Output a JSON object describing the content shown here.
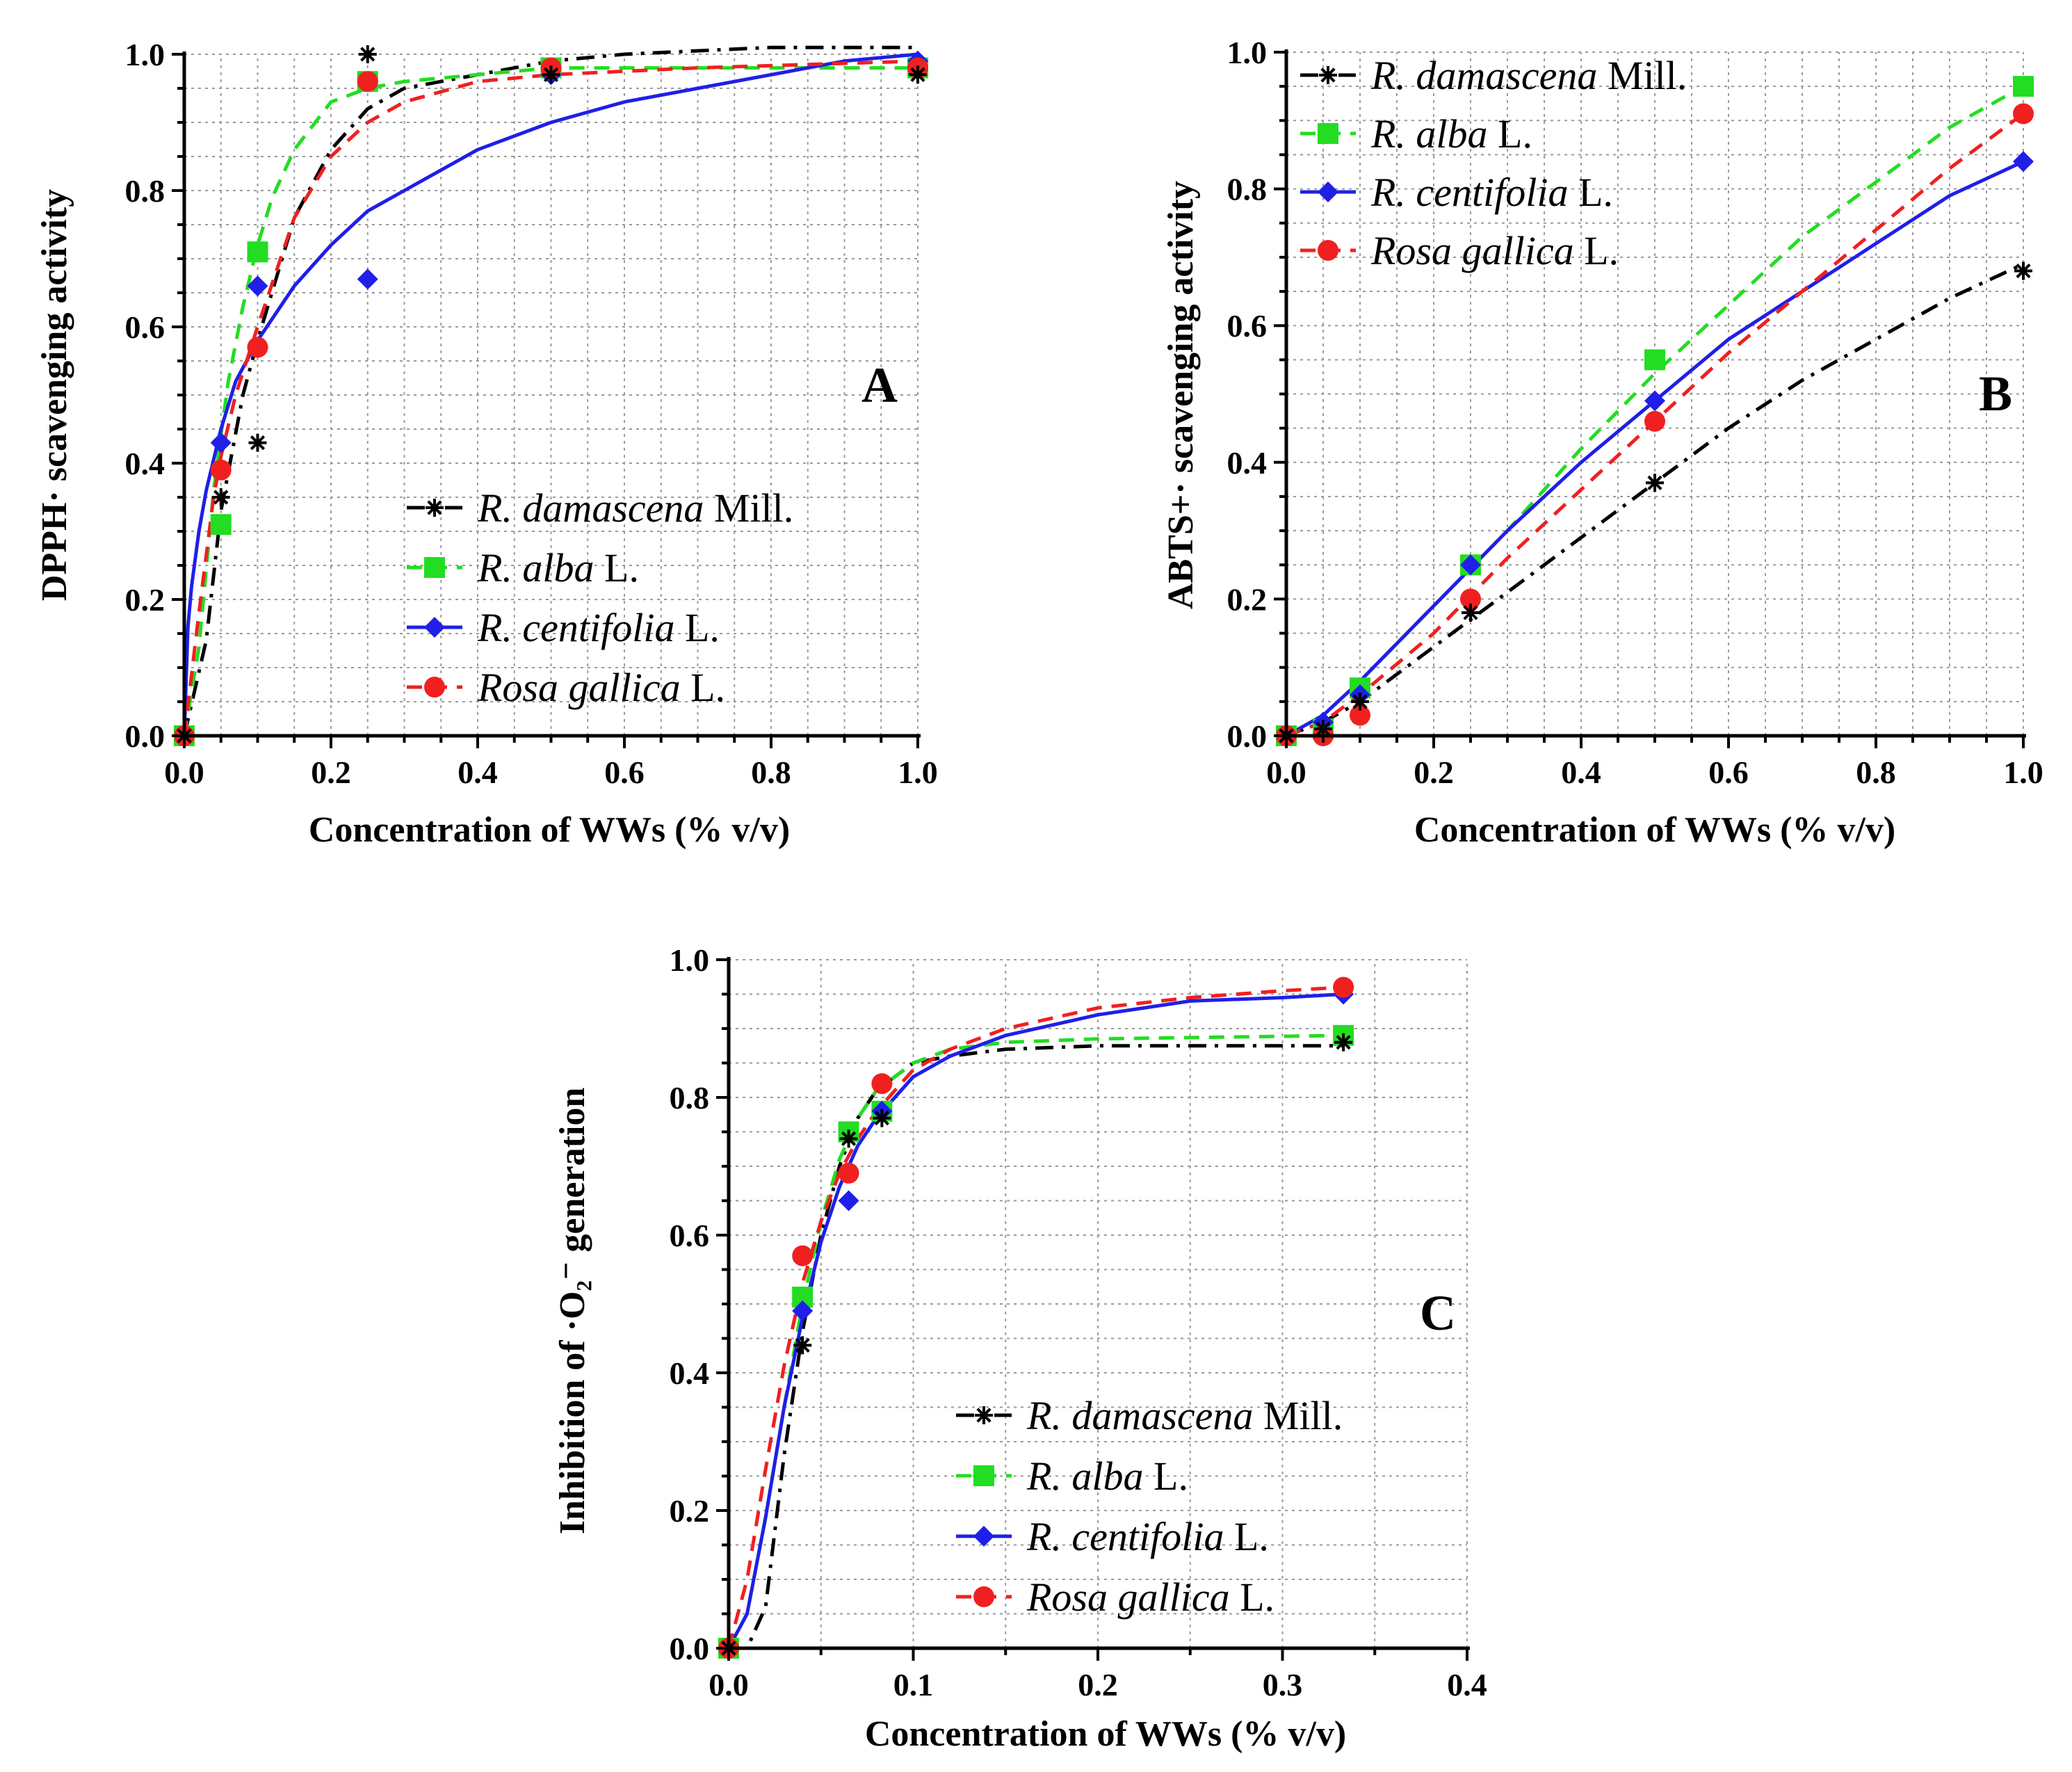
{
  "chart_data": [
    {
      "type": "scatter",
      "panel": "A",
      "xlabel": "Concentration of WWs (% v/v)",
      "ylabel": "DPPH· scavenging activity",
      "xlim": [
        0,
        1.0
      ],
      "ylim": [
        0,
        1.0
      ],
      "xticks": [
        "0.0",
        "0.2",
        "0.4",
        "0.6",
        "0.8",
        "1.0"
      ],
      "yticks": [
        "0.0",
        "0.2",
        "0.4",
        "0.6",
        "0.8",
        "1.0"
      ],
      "grid": true,
      "legend_position": "bottom-right",
      "series": [
        {
          "name": "R. damascena Mill.",
          "species": "R. damascena",
          "suffix": " Mill.",
          "color": "#000000",
          "marker": "star",
          "dash": "dashdot",
          "x": [
            0,
            0.05,
            0.1,
            0.25,
            0.5,
            1.0
          ],
          "y": [
            0,
            0.35,
            0.43,
            1.0,
            0.97,
            0.97
          ],
          "fit_x": [
            0,
            0.03,
            0.05,
            0.08,
            0.1,
            0.15,
            0.2,
            0.25,
            0.3,
            0.4,
            0.5,
            0.6,
            0.8,
            1.0
          ],
          "fit_y": [
            0,
            0.14,
            0.33,
            0.5,
            0.58,
            0.76,
            0.86,
            0.92,
            0.95,
            0.97,
            0.99,
            1.0,
            1.01,
            1.01
          ]
        },
        {
          "name": "R. alba L.",
          "species": "R. alba",
          "suffix": " L.",
          "color": "#22dd22",
          "marker": "square",
          "dash": "dash",
          "x": [
            0,
            0.05,
            0.1,
            0.25,
            0.5,
            1.0
          ],
          "y": [
            0,
            0.31,
            0.71,
            0.96,
            0.98,
            0.98
          ],
          "fit_x": [
            0,
            0.02,
            0.04,
            0.06,
            0.08,
            0.1,
            0.12,
            0.15,
            0.2,
            0.25,
            0.3,
            0.4,
            0.5,
            0.7,
            1.0
          ],
          "fit_y": [
            0,
            0.13,
            0.36,
            0.52,
            0.63,
            0.72,
            0.79,
            0.86,
            0.93,
            0.95,
            0.96,
            0.97,
            0.98,
            0.98,
            0.98
          ]
        },
        {
          "name": "R. centifolia L.",
          "species": "R. centifolia",
          "suffix": " L.",
          "color": "#1f1fe8",
          "marker": "diamond",
          "dash": "solid",
          "x": [
            0,
            0.05,
            0.1,
            0.25,
            0.5,
            1.0
          ],
          "y": [
            0,
            0.43,
            0.66,
            0.67,
            0.97,
            0.99
          ],
          "fit_x": [
            0,
            0.005,
            0.01,
            0.02,
            0.03,
            0.05,
            0.07,
            0.1,
            0.15,
            0.2,
            0.25,
            0.3,
            0.4,
            0.5,
            0.6,
            0.7,
            0.8,
            0.9,
            1.0
          ],
          "fit_y": [
            0,
            0.16,
            0.22,
            0.3,
            0.36,
            0.45,
            0.52,
            0.58,
            0.66,
            0.72,
            0.77,
            0.8,
            0.86,
            0.9,
            0.93,
            0.95,
            0.97,
            0.99,
            1.0
          ]
        },
        {
          "name": "Rosa gallica L.",
          "species": "Rosa gallica",
          "suffix": " L.",
          "color": "#f02020",
          "marker": "circle",
          "dash": "dash",
          "x": [
            0,
            0.05,
            0.1,
            0.25,
            0.5,
            1.0
          ],
          "y": [
            0,
            0.39,
            0.57,
            0.96,
            0.98,
            0.98
          ],
          "fit_x": [
            0,
            0.02,
            0.04,
            0.05,
            0.07,
            0.1,
            0.15,
            0.2,
            0.25,
            0.3,
            0.4,
            0.5,
            0.7,
            1.0
          ],
          "fit_y": [
            0,
            0.18,
            0.35,
            0.41,
            0.5,
            0.6,
            0.76,
            0.85,
            0.9,
            0.93,
            0.96,
            0.97,
            0.98,
            0.99
          ]
        }
      ]
    },
    {
      "type": "scatter",
      "panel": "B",
      "xlabel": "Concentration of WWs (% v/v)",
      "ylabel": "ABTS+· scavenging activity",
      "xlim": [
        0,
        1.0
      ],
      "ylim": [
        0,
        1.0
      ],
      "xticks": [
        "0.0",
        "0.2",
        "0.4",
        "0.6",
        "0.8",
        "1.0"
      ],
      "yticks": [
        "0.0",
        "0.2",
        "0.4",
        "0.6",
        "0.8",
        "1.0"
      ],
      "grid": true,
      "legend_position": "top-left",
      "series": [
        {
          "name": "R. damascena Mill.",
          "species": "R. damascena",
          "suffix": " Mill.",
          "color": "#000000",
          "marker": "star",
          "dash": "dashdot",
          "x": [
            0,
            0.05,
            0.1,
            0.25,
            0.5,
            1.0
          ],
          "y": [
            0,
            0.01,
            0.05,
            0.18,
            0.37,
            0.68
          ],
          "fit_x": [
            0,
            0.05,
            0.1,
            0.2,
            0.3,
            0.4,
            0.5,
            0.6,
            0.7,
            0.8,
            0.9,
            1.0
          ],
          "fit_y": [
            0,
            0.02,
            0.05,
            0.13,
            0.21,
            0.29,
            0.37,
            0.45,
            0.52,
            0.58,
            0.64,
            0.69
          ]
        },
        {
          "name": "R. alba L.",
          "species": "R. alba",
          "suffix": " L.",
          "color": "#22dd22",
          "marker": "square",
          "dash": "dash",
          "x": [
            0,
            0.05,
            0.1,
            0.25,
            0.5,
            1.0
          ],
          "y": [
            0,
            0.01,
            0.07,
            0.25,
            0.55,
            0.95
          ],
          "fit_x": [
            0,
            0.05,
            0.1,
            0.2,
            0.3,
            0.4,
            0.5,
            0.6,
            0.7,
            0.8,
            0.9,
            1.0
          ],
          "fit_y": [
            0,
            0.03,
            0.08,
            0.19,
            0.3,
            0.42,
            0.53,
            0.63,
            0.73,
            0.81,
            0.89,
            0.95
          ]
        },
        {
          "name": "R. centifolia L.",
          "species": "R. centifolia",
          "suffix": " L.",
          "color": "#1f1fe8",
          "marker": "diamond",
          "dash": "solid",
          "x": [
            0,
            0.05,
            0.1,
            0.25,
            0.5,
            1.0
          ],
          "y": [
            0,
            0.02,
            0.06,
            0.25,
            0.49,
            0.84
          ],
          "fit_x": [
            0,
            0.05,
            0.1,
            0.2,
            0.3,
            0.4,
            0.5,
            0.6,
            0.7,
            0.8,
            0.9,
            1.0
          ],
          "fit_y": [
            0,
            0.03,
            0.08,
            0.19,
            0.3,
            0.4,
            0.49,
            0.58,
            0.65,
            0.72,
            0.79,
            0.84
          ]
        },
        {
          "name": "Rosa gallica L.",
          "species": "Rosa gallica",
          "suffix": " L.",
          "color": "#f02020",
          "marker": "circle",
          "dash": "dash",
          "x": [
            0,
            0.05,
            0.1,
            0.25,
            0.5,
            1.0
          ],
          "y": [
            0,
            0.0,
            0.03,
            0.2,
            0.46,
            0.91
          ],
          "fit_x": [
            0,
            0.05,
            0.1,
            0.2,
            0.3,
            0.4,
            0.5,
            0.6,
            0.7,
            0.8,
            0.9,
            1.0
          ],
          "fit_y": [
            0,
            0.02,
            0.06,
            0.15,
            0.26,
            0.36,
            0.46,
            0.56,
            0.65,
            0.74,
            0.83,
            0.91
          ]
        }
      ]
    },
    {
      "type": "scatter",
      "panel": "C",
      "xlabel": "Concentration of WWs (% v/v)",
      "ylabel": "Inhibition of ·O₂⁻ generation",
      "xlim": [
        0,
        0.4
      ],
      "ylim": [
        0,
        1.0
      ],
      "xticks": [
        "0.0",
        "0.1",
        "0.2",
        "0.3",
        "0.4"
      ],
      "yticks": [
        "0.0",
        "0.2",
        "0.4",
        "0.6",
        "0.8",
        "1.0"
      ],
      "grid": true,
      "legend_position": "bottom-right",
      "series": [
        {
          "name": "R. damascena Mill.",
          "species": "R. damascena",
          "suffix": " Mill.",
          "color": "#000000",
          "marker": "star",
          "dash": "dashdot",
          "x": [
            0,
            0.04,
            0.065,
            0.083,
            0.333
          ],
          "y": [
            0,
            0.44,
            0.74,
            0.77,
            0.88
          ],
          "fit_x": [
            0,
            0.01,
            0.02,
            0.03,
            0.04,
            0.05,
            0.06,
            0.07,
            0.08,
            0.1,
            0.12,
            0.15,
            0.2,
            0.333
          ],
          "fit_y": [
            0,
            0.0,
            0.06,
            0.28,
            0.46,
            0.6,
            0.7,
            0.77,
            0.81,
            0.85,
            0.86,
            0.87,
            0.875,
            0.875
          ]
        },
        {
          "name": "R. alba L.",
          "species": "R. alba",
          "suffix": " L.",
          "color": "#22dd22",
          "marker": "square",
          "dash": "dash",
          "x": [
            0,
            0.04,
            0.065,
            0.083,
            0.333
          ],
          "y": [
            0,
            0.51,
            0.75,
            0.78,
            0.89
          ],
          "fit_x": [
            0,
            0.01,
            0.02,
            0.03,
            0.04,
            0.05,
            0.06,
            0.07,
            0.08,
            0.1,
            0.12,
            0.15,
            0.2,
            0.333
          ],
          "fit_y": [
            0,
            0.05,
            0.19,
            0.35,
            0.5,
            0.62,
            0.71,
            0.77,
            0.81,
            0.85,
            0.87,
            0.88,
            0.885,
            0.89
          ]
        },
        {
          "name": "R. centifolia L.",
          "species": "R. centifolia",
          "suffix": " L.",
          "color": "#1f1fe8",
          "marker": "diamond",
          "dash": "solid",
          "x": [
            0,
            0.04,
            0.065,
            0.083,
            0.333
          ],
          "y": [
            0,
            0.49,
            0.65,
            0.78,
            0.95
          ],
          "fit_x": [
            0,
            0.01,
            0.02,
            0.03,
            0.04,
            0.05,
            0.06,
            0.07,
            0.08,
            0.1,
            0.12,
            0.15,
            0.2,
            0.25,
            0.3,
            0.333
          ],
          "fit_y": [
            0,
            0.05,
            0.19,
            0.35,
            0.48,
            0.59,
            0.67,
            0.73,
            0.77,
            0.83,
            0.86,
            0.89,
            0.92,
            0.94,
            0.945,
            0.95
          ]
        },
        {
          "name": "Rosa gallica L.",
          "species": "Rosa gallica",
          "suffix": " L.",
          "color": "#f02020",
          "marker": "circle",
          "dash": "dash",
          "x": [
            0,
            0.04,
            0.065,
            0.083,
            0.333
          ],
          "y": [
            0,
            0.57,
            0.69,
            0.82,
            0.96
          ],
          "fit_x": [
            0,
            0.01,
            0.02,
            0.03,
            0.04,
            0.05,
            0.06,
            0.07,
            0.08,
            0.1,
            0.12,
            0.15,
            0.2,
            0.25,
            0.3,
            0.333
          ],
          "fit_y": [
            0,
            0.1,
            0.26,
            0.41,
            0.53,
            0.62,
            0.69,
            0.74,
            0.78,
            0.84,
            0.87,
            0.9,
            0.93,
            0.945,
            0.955,
            0.96
          ]
        }
      ]
    }
  ]
}
